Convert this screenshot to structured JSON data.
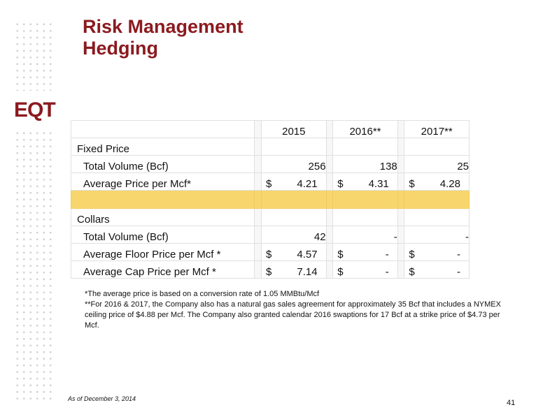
{
  "title": {
    "line1": "Risk Management",
    "line2": "Hedging"
  },
  "logo": {
    "text": "EQT",
    "color": "#8b1a1f"
  },
  "table": {
    "headers": [
      "2015",
      "2016**",
      "2017**"
    ],
    "fixed_price": {
      "label": "Fixed Price",
      "volume_label": "Total Volume (Bcf)",
      "volume": [
        "256",
        "138",
        "25"
      ],
      "price_label": "Average Price per Mcf*",
      "price": [
        {
          "cur": "$",
          "val": "4.21"
        },
        {
          "cur": "$",
          "val": "4.31"
        },
        {
          "cur": "$",
          "val": "4.28"
        }
      ]
    },
    "collars": {
      "label": "Collars",
      "volume_label": "Total Volume (Bcf)",
      "volume": [
        "42",
        "-",
        "-"
      ],
      "floor_label": "Average Floor Price per Mcf *",
      "floor": [
        {
          "cur": "$",
          "val": "4.57"
        },
        {
          "cur": "$",
          "val": "-"
        },
        {
          "cur": "$",
          "val": "-"
        }
      ],
      "cap_label": "Average Cap Price per Mcf *",
      "cap": [
        {
          "cur": "$",
          "val": "7.14"
        },
        {
          "cur": "$",
          "val": "-"
        },
        {
          "cur": "$",
          "val": "-"
        }
      ]
    }
  },
  "notes": [
    "*The average price is based on a conversion rate of 1.05 MMBtu/Mcf",
    "**For 2016 & 2017, the Company also has a natural gas sales agreement for approximately 35 Bcf that includes a NYMEX ceiling price of $4.88 per Mcf. The Company also granted calendar 2016 swaptions for 17 Bcf at a strike price of $4.73 per Mcf."
  ],
  "footer": "As of December 3, 2014",
  "page_number": "41"
}
